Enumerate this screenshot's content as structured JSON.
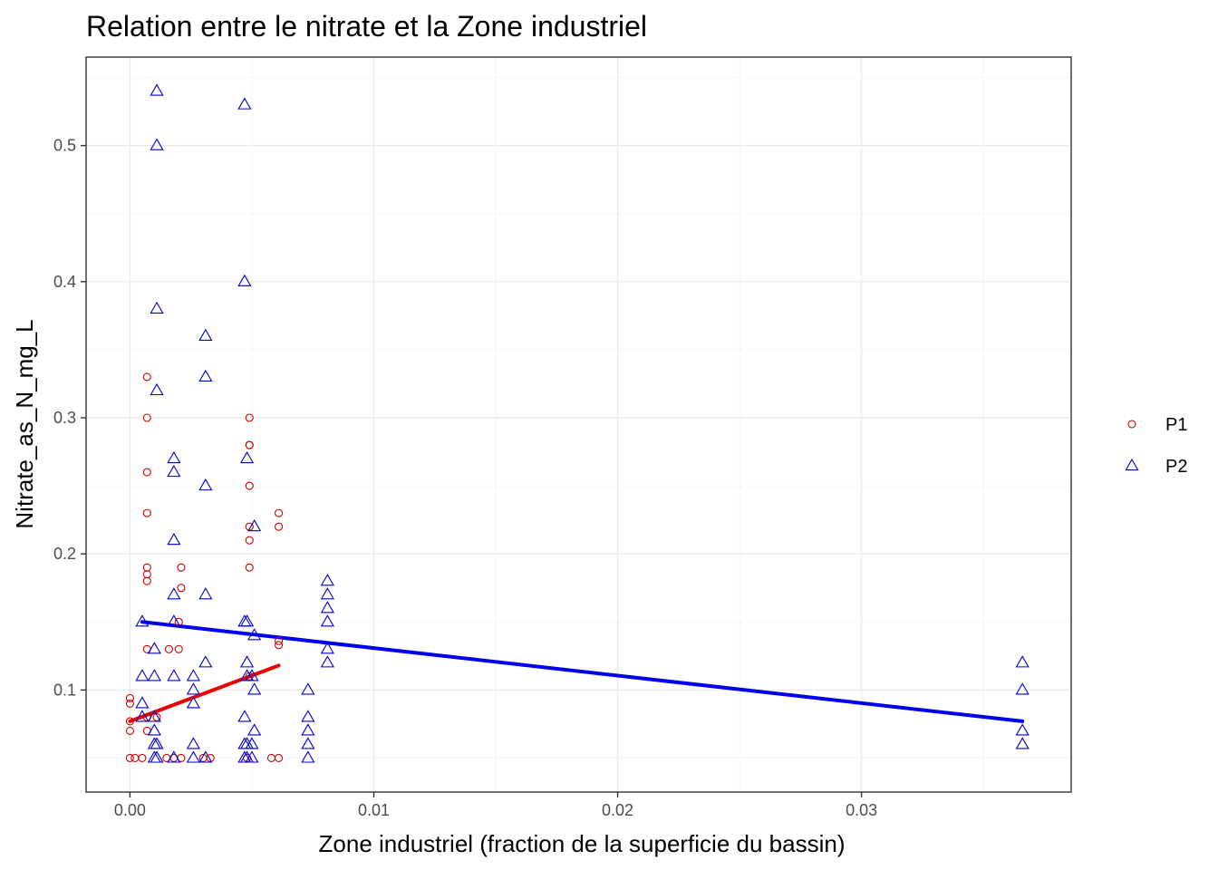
{
  "chart_data": {
    "type": "scatter",
    "title": "Relation entre le nitrate et la Zone industriel",
    "xlabel": "Zone industriel (fraction de la superficie du bassin)",
    "ylabel": "Nitrate_as_N_mg_L",
    "xlim": [
      -0.0018,
      0.0386
    ],
    "ylim": [
      0.025,
      0.565
    ],
    "x_ticks": [
      0.0,
      0.01,
      0.02,
      0.03
    ],
    "x_tick_labels": [
      "0.00",
      "0.01",
      "0.02",
      "0.03"
    ],
    "y_ticks": [
      0.1,
      0.2,
      0.3,
      0.4,
      0.5
    ],
    "y_tick_labels": [
      "0.1",
      "0.2",
      "0.3",
      "0.4",
      "0.5"
    ],
    "grid": true,
    "legend_position": "right",
    "series": [
      {
        "name": "P1",
        "color": "#cc0000",
        "marker": "circle",
        "points": [
          [
            0.0,
            0.05
          ],
          [
            0.0,
            0.07
          ],
          [
            0.0,
            0.077
          ],
          [
            0.0,
            0.09
          ],
          [
            0.0,
            0.094
          ],
          [
            0.0002,
            0.05
          ],
          [
            0.0005,
            0.05
          ],
          [
            0.0007,
            0.07
          ],
          [
            0.0007,
            0.08
          ],
          [
            0.0007,
            0.13
          ],
          [
            0.0007,
            0.18
          ],
          [
            0.0007,
            0.185
          ],
          [
            0.0007,
            0.19
          ],
          [
            0.0007,
            0.23
          ],
          [
            0.0007,
            0.26
          ],
          [
            0.0007,
            0.3
          ],
          [
            0.0007,
            0.33
          ],
          [
            0.0011,
            0.08
          ],
          [
            0.0015,
            0.05
          ],
          [
            0.0016,
            0.13
          ],
          [
            0.0018,
            0.05
          ],
          [
            0.002,
            0.13
          ],
          [
            0.002,
            0.15
          ],
          [
            0.0021,
            0.05
          ],
          [
            0.0021,
            0.175
          ],
          [
            0.0021,
            0.19
          ],
          [
            0.003,
            0.05
          ],
          [
            0.0033,
            0.05
          ],
          [
            0.0048,
            0.05
          ],
          [
            0.0049,
            0.11
          ],
          [
            0.0049,
            0.19
          ],
          [
            0.0049,
            0.21
          ],
          [
            0.0049,
            0.22
          ],
          [
            0.0049,
            0.25
          ],
          [
            0.0049,
            0.28
          ],
          [
            0.0049,
            0.28
          ],
          [
            0.0049,
            0.3
          ],
          [
            0.0058,
            0.05
          ],
          [
            0.0061,
            0.05
          ],
          [
            0.0061,
            0.133
          ],
          [
            0.0061,
            0.136
          ],
          [
            0.0061,
            0.22
          ],
          [
            0.0061,
            0.23
          ]
        ]
      },
      {
        "name": "P2",
        "color": "#0000cc",
        "marker": "triangle",
        "points": [
          [
            0.0005,
            0.08
          ],
          [
            0.0005,
            0.09
          ],
          [
            0.0005,
            0.11
          ],
          [
            0.0005,
            0.15
          ],
          [
            0.001,
            0.05
          ],
          [
            0.001,
            0.06
          ],
          [
            0.001,
            0.07
          ],
          [
            0.001,
            0.08
          ],
          [
            0.001,
            0.11
          ],
          [
            0.001,
            0.13
          ],
          [
            0.0011,
            0.05
          ],
          [
            0.0011,
            0.06
          ],
          [
            0.0011,
            0.32
          ],
          [
            0.0011,
            0.38
          ],
          [
            0.0011,
            0.5
          ],
          [
            0.0011,
            0.54
          ],
          [
            0.0018,
            0.05
          ],
          [
            0.0018,
            0.11
          ],
          [
            0.0018,
            0.15
          ],
          [
            0.0018,
            0.17
          ],
          [
            0.0018,
            0.21
          ],
          [
            0.0018,
            0.26
          ],
          [
            0.0018,
            0.27
          ],
          [
            0.0026,
            0.05
          ],
          [
            0.0026,
            0.06
          ],
          [
            0.0026,
            0.09
          ],
          [
            0.0026,
            0.1
          ],
          [
            0.0026,
            0.11
          ],
          [
            0.0031,
            0.05
          ],
          [
            0.0031,
            0.12
          ],
          [
            0.0031,
            0.17
          ],
          [
            0.0031,
            0.25
          ],
          [
            0.0031,
            0.33
          ],
          [
            0.0031,
            0.36
          ],
          [
            0.0047,
            0.05
          ],
          [
            0.0047,
            0.06
          ],
          [
            0.0047,
            0.08
          ],
          [
            0.0047,
            0.15
          ],
          [
            0.0047,
            0.4
          ],
          [
            0.0047,
            0.53
          ],
          [
            0.0048,
            0.05
          ],
          [
            0.0048,
            0.06
          ],
          [
            0.0048,
            0.11
          ],
          [
            0.0048,
            0.12
          ],
          [
            0.0048,
            0.15
          ],
          [
            0.0048,
            0.27
          ],
          [
            0.005,
            0.05
          ],
          [
            0.005,
            0.06
          ],
          [
            0.005,
            0.11
          ],
          [
            0.0051,
            0.07
          ],
          [
            0.0051,
            0.1
          ],
          [
            0.0051,
            0.14
          ],
          [
            0.0051,
            0.22
          ],
          [
            0.0073,
            0.05
          ],
          [
            0.0073,
            0.06
          ],
          [
            0.0073,
            0.07
          ],
          [
            0.0073,
            0.08
          ],
          [
            0.0073,
            0.1
          ],
          [
            0.0081,
            0.12
          ],
          [
            0.0081,
            0.13
          ],
          [
            0.0081,
            0.15
          ],
          [
            0.0081,
            0.16
          ],
          [
            0.0081,
            0.17
          ],
          [
            0.0081,
            0.18
          ],
          [
            0.0366,
            0.06
          ],
          [
            0.0366,
            0.07
          ],
          [
            0.0366,
            0.1
          ],
          [
            0.0366,
            0.12
          ]
        ]
      }
    ],
    "fit_lines": [
      {
        "series": "P1",
        "color": "#ee0000",
        "x": [
          0.0,
          0.0061
        ],
        "y": [
          0.077,
          0.118
        ]
      },
      {
        "series": "P2",
        "color": "#0000ee",
        "x": [
          0.0005,
          0.0366
        ],
        "y": [
          0.15,
          0.077
        ]
      }
    ]
  }
}
